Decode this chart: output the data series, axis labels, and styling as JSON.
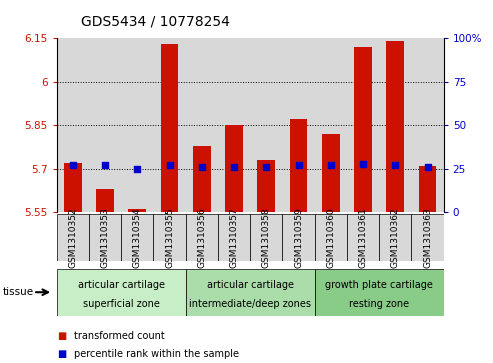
{
  "title": "GDS5434 / 10778254",
  "samples": [
    "GSM1310352",
    "GSM1310353",
    "GSM1310354",
    "GSM1310355",
    "GSM1310356",
    "GSM1310357",
    "GSM1310358",
    "GSM1310359",
    "GSM1310360",
    "GSM1310361",
    "GSM1310362",
    "GSM1310363"
  ],
  "transformed_count": [
    5.72,
    5.63,
    5.56,
    6.13,
    5.78,
    5.85,
    5.73,
    5.87,
    5.82,
    6.12,
    6.14,
    5.71
  ],
  "percentile_rank": [
    27,
    27,
    25,
    27,
    26,
    26,
    26,
    27,
    27,
    28,
    27,
    26
  ],
  "ylim_left": [
    5.55,
    6.15
  ],
  "ylim_right": [
    0,
    100
  ],
  "yticks_left": [
    5.55,
    5.7,
    5.85,
    6.0,
    6.15
  ],
  "yticks_right": [
    0,
    25,
    50,
    75,
    100
  ],
  "ytick_labels_left": [
    "5.55",
    "5.7",
    "5.85",
    "6",
    "6.15"
  ],
  "ytick_labels_right": [
    "0",
    "25",
    "50",
    "75",
    "100%"
  ],
  "hlines": [
    5.7,
    5.85,
    6.0
  ],
  "bar_color": "#cc1100",
  "dot_color": "#0000cc",
  "bar_bottom": 5.55,
  "groups": [
    {
      "label": "articular cartilage\nsuperficial zone",
      "indices": [
        0,
        1,
        2,
        3
      ],
      "color": "#c8eec8"
    },
    {
      "label": "articular cartilage\nintermediate/deep zones",
      "indices": [
        4,
        5,
        6,
        7
      ],
      "color": "#aaddaa"
    },
    {
      "label": "growth plate cartilage\nresting zone",
      "indices": [
        8,
        9,
        10,
        11
      ],
      "color": "#88cc88"
    }
  ],
  "tissue_label": "tissue",
  "legend_red": "transformed count",
  "legend_blue": "percentile rank within the sample",
  "bar_width": 0.55,
  "col_bg": "#d8d8d8",
  "plot_bg": "#ffffff",
  "left_tick_color": "#cc1100",
  "right_tick_color": "#0000cc",
  "title_fontsize": 10,
  "tick_fontsize": 7.5,
  "sample_fontsize": 6.5
}
